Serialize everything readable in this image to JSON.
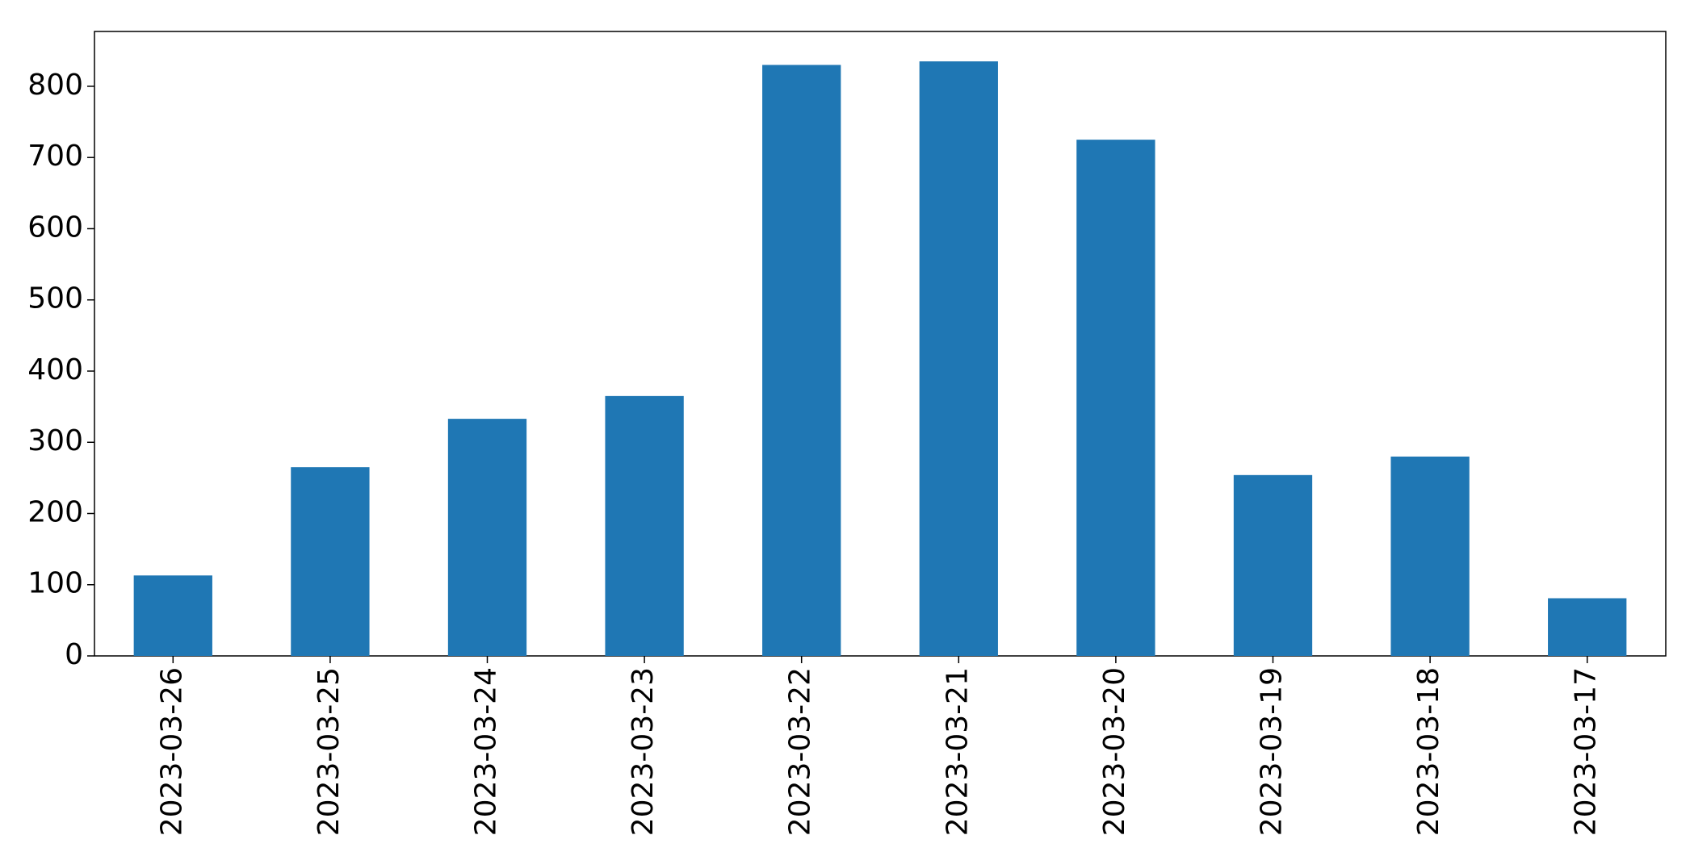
{
  "chart_data": {
    "type": "bar",
    "categories": [
      "2023-03-26",
      "2023-03-25",
      "2023-03-24",
      "2023-03-23",
      "2023-03-22",
      "2023-03-21",
      "2023-03-20",
      "2023-03-19",
      "2023-03-18",
      "2023-03-17"
    ],
    "values": [
      113,
      265,
      333,
      365,
      830,
      835,
      725,
      254,
      280,
      81
    ],
    "color": "#1f77b4",
    "ylim": [
      0,
      877
    ],
    "yticks": [
      0,
      100,
      200,
      300,
      400,
      500,
      600,
      700,
      800
    ],
    "grid": false
  }
}
